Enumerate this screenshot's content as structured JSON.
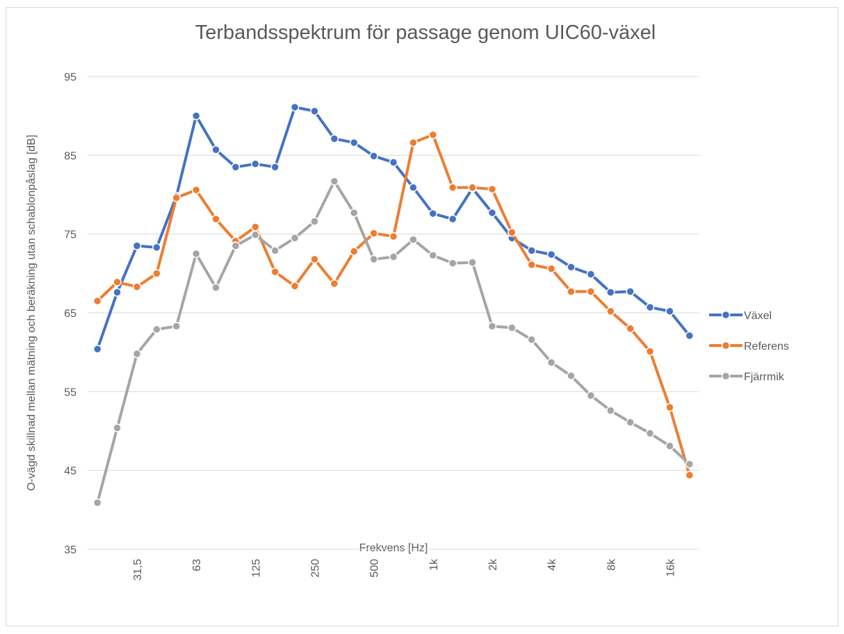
{
  "chart_data": {
    "type": "line",
    "title": "Terbandsspektrum för passage genom UIC60-växel",
    "x_label": "Frekvens [Hz]",
    "y_label": "O-vägd skillnad mellan mätning och beräkning utan schablonpåslag [dB]",
    "categories": [
      null,
      null,
      "31,5",
      null,
      null,
      "63",
      null,
      null,
      "125",
      null,
      null,
      "250",
      null,
      null,
      "500",
      null,
      null,
      "1k",
      null,
      null,
      "2k",
      null,
      null,
      "4k",
      null,
      null,
      "8k",
      null,
      null,
      "16k",
      null
    ],
    "series": [
      {
        "name": "Växel",
        "color": "#4472c4",
        "values": [
          60.4,
          67.6,
          73.5,
          73.3,
          79.8,
          90.0,
          85.7,
          83.5,
          83.9,
          83.5,
          91.1,
          90.6,
          87.1,
          86.6,
          84.9,
          84.1,
          80.9,
          77.6,
          76.9,
          80.8,
          77.7,
          74.5,
          72.9,
          72.4,
          70.8,
          69.9,
          67.6,
          67.7,
          65.7,
          65.2,
          62.1
        ]
      },
      {
        "name": "Referens",
        "color": "#ed7d31",
        "values": [
          66.5,
          68.9,
          68.3,
          70.0,
          79.6,
          80.6,
          76.9,
          74.1,
          75.9,
          70.2,
          68.4,
          71.8,
          68.7,
          72.8,
          75.1,
          74.7,
          86.6,
          87.6,
          80.9,
          80.9,
          80.7,
          75.2,
          71.1,
          70.6,
          67.7,
          67.7,
          65.2,
          63.0,
          60.1,
          53.0,
          44.4
        ]
      },
      {
        "name": "Fjärrmik",
        "color": "#a5a5a5",
        "values": [
          40.9,
          50.4,
          59.8,
          62.9,
          63.3,
          72.5,
          68.2,
          73.5,
          74.9,
          72.9,
          74.5,
          76.6,
          81.7,
          77.7,
          71.8,
          72.1,
          74.3,
          72.3,
          71.3,
          71.4,
          63.3,
          63.1,
          61.6,
          58.7,
          57.0,
          54.5,
          52.6,
          51.1,
          49.7,
          48.1,
          45.8
        ]
      }
    ],
    "ylim": [
      35,
      95
    ],
    "yticks": [
      35,
      45,
      55,
      65,
      75,
      85,
      95
    ],
    "grid": true,
    "legend": "right"
  }
}
